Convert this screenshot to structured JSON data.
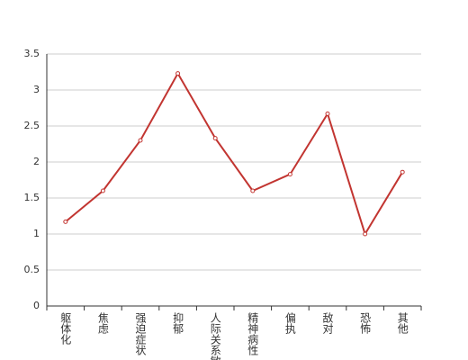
{
  "chart_data": {
    "type": "line",
    "categories": [
      "躯体化",
      "焦虑",
      "强迫症状",
      "抑郁",
      "人际关系敏感",
      "精神病性",
      "偏执",
      "敌对",
      "恐怖",
      "其他"
    ],
    "values": [
      1.17,
      1.6,
      2.3,
      3.23,
      2.33,
      1.6,
      1.83,
      2.67,
      1.0,
      1.86
    ],
    "color": "#c23531",
    "ylim": [
      0,
      3.5
    ],
    "yticks": [
      0,
      0.5,
      1,
      1.5,
      2,
      2.5,
      3,
      3.5
    ],
    "grid": true
  }
}
